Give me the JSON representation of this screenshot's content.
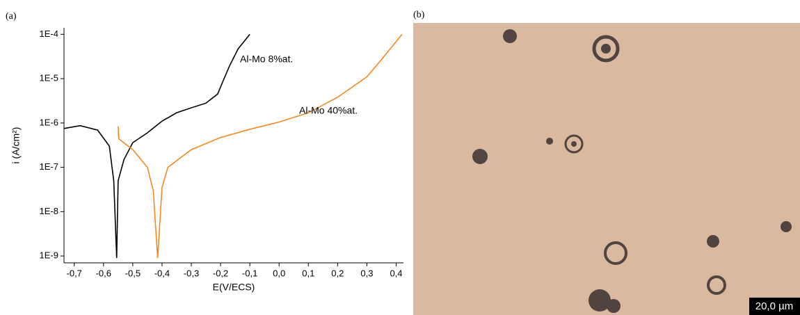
{
  "figure": {
    "panel_a": "(a)",
    "panel_b": "(b)",
    "scale_bar": "20,0 µm"
  },
  "chart_data": {
    "type": "line",
    "y_log": true,
    "xlabel": "E(V/ECS)",
    "ylabel": "i (A/cm²)",
    "xlim": [
      -0.735,
      0.425
    ],
    "ylim": [
      7e-10,
      0.00014
    ],
    "xticks": [
      {
        "value": -0.7,
        "label": "-0,7"
      },
      {
        "value": -0.6,
        "label": "-0,6"
      },
      {
        "value": -0.5,
        "label": "-0,5"
      },
      {
        "value": -0.4,
        "label": "-0,4"
      },
      {
        "value": -0.3,
        "label": "-0,3"
      },
      {
        "value": -0.2,
        "label": "-0,2"
      },
      {
        "value": -0.1,
        "label": "-0,1"
      },
      {
        "value": 0,
        "label": "0,0"
      },
      {
        "value": 0.1,
        "label": "0,1"
      },
      {
        "value": 0.2,
        "label": "0,2"
      },
      {
        "value": 0.3,
        "label": "0,3"
      },
      {
        "value": 0.4,
        "label": "0,4"
      }
    ],
    "yticks": [
      {
        "value": 1e-09,
        "label": "1E-9"
      },
      {
        "value": 1e-08,
        "label": "1E-8"
      },
      {
        "value": 1e-07,
        "label": "1E-7"
      },
      {
        "value": 1e-06,
        "label": "1E-6"
      },
      {
        "value": 1e-05,
        "label": "1E-5"
      },
      {
        "value": 0.0001,
        "label": "1E-4"
      }
    ],
    "series": [
      {
        "name": "Al-Mo 8%at.",
        "color": "#000000",
        "x": [
          -0.735,
          -0.68,
          -0.62,
          -0.58,
          -0.565,
          -0.555,
          -0.55,
          -0.53,
          -0.5,
          -0.45,
          -0.4,
          -0.35,
          -0.3,
          -0.25,
          -0.21,
          -0.19,
          -0.17,
          -0.14,
          -0.1
        ],
        "values": [
          7.5e-07,
          8.7e-07,
          6.9e-07,
          3e-07,
          5e-08,
          9e-10,
          5e-08,
          1.5e-07,
          3.6e-07,
          6e-07,
          1.1e-06,
          1.7e-06,
          2.2e-06,
          2.8e-06,
          4.5e-06,
          9.3e-06,
          1.9e-05,
          4.7e-05,
          0.0001
        ]
      },
      {
        "name": "Al-Mo 40%at.",
        "color": "#f5891f",
        "x": [
          -0.55,
          -0.548,
          -0.5,
          -0.45,
          -0.43,
          -0.415,
          -0.4,
          -0.38,
          -0.3,
          -0.2,
          -0.1,
          0,
          0.1,
          0.2,
          0.3,
          0.35,
          0.42
        ],
        "values": [
          8.4e-07,
          4.4e-07,
          2.5e-07,
          1e-07,
          3e-08,
          9e-10,
          3.5e-08,
          1e-07,
          2.5e-07,
          4.7e-07,
          7.2e-07,
          1.05e-06,
          1.7e-06,
          3.8e-06,
          1.1e-05,
          2.7e-05,
          0.0001
        ]
      }
    ]
  }
}
